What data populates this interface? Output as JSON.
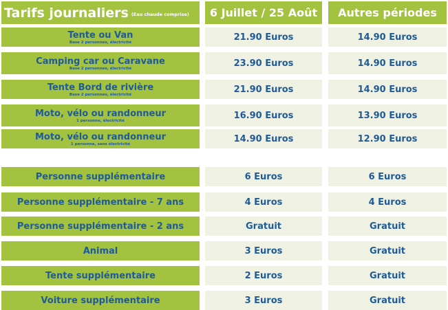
{
  "header": {
    "title": "Tarifs journaliers",
    "title_note": "(Eau chaude comprise)",
    "col1": "6 Juillet / 25 Août",
    "col2": "Autres périodes"
  },
  "colors": {
    "label_bg": "#a3c240",
    "price_bg": "#eff2e3",
    "text_blue": "#1f5a99"
  },
  "rows": [
    {
      "label": "Tente ou Van",
      "note": "Base 2 personnes, électricité",
      "p1": "21.90 Euros",
      "p2": "14.90 Euros"
    },
    {
      "label": "Camping car ou Caravane",
      "note": "Base 2 personnes, électricité",
      "p1": "23.90 Euros",
      "p2": "14.90 Euros"
    },
    {
      "label": "Tente Bord de rivière",
      "note": "Base 2 personnes, électricité",
      "p1": "21.90 Euros",
      "p2": "14.90 Euros"
    },
    {
      "label": "Moto, vélo ou randonneur",
      "note": "1 personne, électricité",
      "p1": "16.90 Euros",
      "p2": "13.90 Euros"
    },
    {
      "label": "Moto, vélo ou randonneur",
      "note": "1 personne, sans électricité",
      "p1": "14.90 Euros",
      "p2": "12.90 Euros"
    },
    {
      "label": "Personne supplémentaire",
      "note": "",
      "p1": "6 Euros",
      "p2": "6 Euros"
    },
    {
      "label": "Personne supplémentaire - 7 ans",
      "note": "",
      "p1": "4 Euros",
      "p2": "4 Euros"
    },
    {
      "label": "Personne supplémentaire - 2 ans",
      "note": "",
      "p1": "Gratuit",
      "p2": "Gratuit"
    },
    {
      "label": "Animal",
      "note": "",
      "p1": "3 Euros",
      "p2": "Gratuit"
    },
    {
      "label": "Tente supplémentaire",
      "note": "",
      "p1": "2 Euros",
      "p2": "Gratuit"
    },
    {
      "label": "Voiture supplémentaire",
      "note": "",
      "p1": "3 Euros",
      "p2": "Gratuit"
    }
  ]
}
